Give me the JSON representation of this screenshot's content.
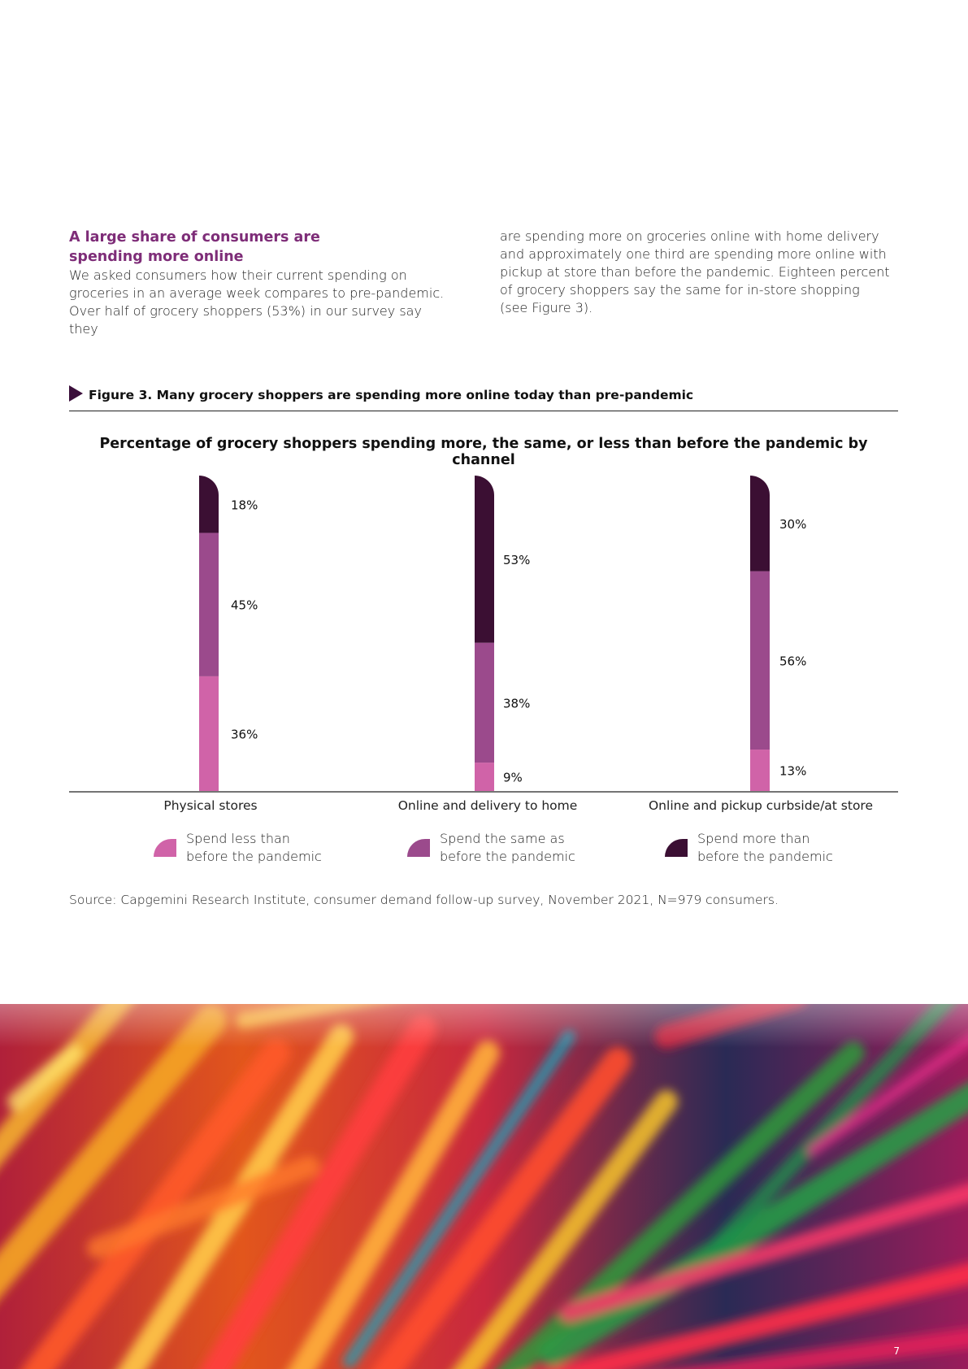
{
  "section": {
    "heading": "A large share of consumers are spending more online",
    "left_lines": [
      "We asked consumers how their current spending on",
      "groceries in an average week compares to pre-pandemic.",
      "Over half of grocery shoppers (53%) in our survey say they"
    ],
    "right_lines": [
      "are spending more on groceries online with home delivery",
      "and approximately one third are spending more online with",
      "pickup at store than before the pandemic. Eighteen percent",
      "of grocery shoppers say the same for in-store shopping",
      "(see Figure 3)."
    ]
  },
  "figure": {
    "caption": "Figure 3. Many grocery shoppers are spending more online today than pre-pandemic",
    "source": "Source: Capgemini Research Institute, consumer demand follow-up survey, November 2021, N=979 consumers."
  },
  "legend": [
    {
      "line1": "Spend less than",
      "line2": "before the pandemic",
      "color": "#d063a8"
    },
    {
      "line1": "Spend the same as",
      "line2": "before the pandemic",
      "color": "#9b4a8c"
    },
    {
      "line1": "Spend more than",
      "line2": "before the pandemic",
      "color": "#3b0f33"
    }
  ],
  "chart_data": {
    "type": "bar",
    "stacked": true,
    "title": "Percentage of grocery shoppers spending more, the same, or less than before the pandemic by channel",
    "categories": [
      "Physical stores",
      "Online and delivery to home",
      "Online and pickup curbside/at store"
    ],
    "series": [
      {
        "name": "Spend less than before the pandemic",
        "values": [
          36,
          9,
          13
        ],
        "color": "#d063a8"
      },
      {
        "name": "Spend the same as before the pandemic",
        "values": [
          45,
          38,
          56
        ],
        "color": "#9b4a8c"
      },
      {
        "name": "Spend more than before the pandemic",
        "values": [
          18,
          53,
          30
        ],
        "color": "#3b0f33"
      }
    ],
    "value_suffix": "%",
    "ylim": [
      0,
      100
    ]
  },
  "page": {
    "number": "7"
  }
}
